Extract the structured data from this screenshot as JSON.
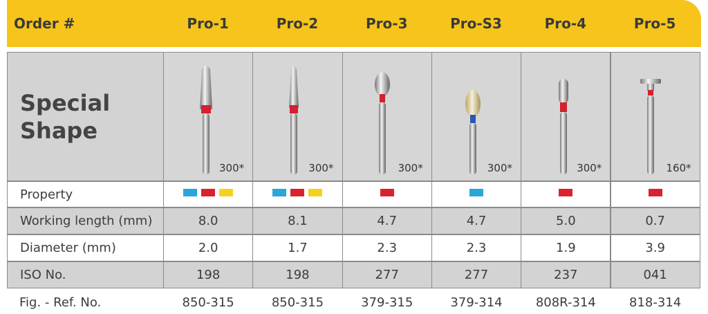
{
  "header": {
    "title": "Order #",
    "columns": [
      "Pro-1",
      "Pro-2",
      "Pro-3",
      "Pro-S3",
      "Pro-4",
      "Pro-5"
    ]
  },
  "shape": {
    "label": "Special Shape",
    "counts": [
      "300*",
      "300*",
      "300*",
      "300*",
      "300*",
      "160*"
    ]
  },
  "property": {
    "label": "Property",
    "colors": [
      [
        "#2aa6d8",
        "#d8232f",
        "#f4d21c"
      ],
      [
        "#2aa6d8",
        "#d8232f",
        "#f4d21c"
      ],
      [
        "#d8232f"
      ],
      [
        "#2aa6d8"
      ],
      [
        "#d8232f"
      ],
      [
        "#d8232f"
      ]
    ]
  },
  "rows": [
    {
      "label": "Working length (mm)",
      "values": [
        "8.0",
        "8.1",
        "4.7",
        "4.7",
        "5.0",
        "0.7"
      ]
    },
    {
      "label": "Diameter (mm)",
      "values": [
        "2.0",
        "1.7",
        "2.3",
        "2.3",
        "1.9",
        "3.9"
      ]
    },
    {
      "label": "ISO No.",
      "values": [
        "198",
        "198",
        "277",
        "277",
        "237",
        "041"
      ]
    },
    {
      "label": "Fig. - Ref. No.",
      "values": [
        "850-315",
        "850-315",
        "379-315",
        "379-314",
        "808R-314",
        "818-314"
      ]
    }
  ]
}
